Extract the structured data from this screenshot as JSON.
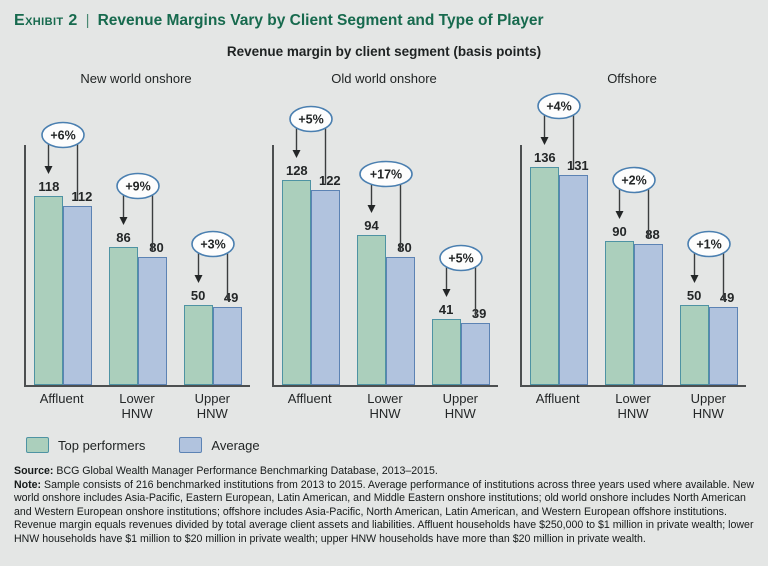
{
  "exhibit": {
    "label": "Exhibit 2",
    "separator": "|",
    "title": "Revenue Margins Vary by Client Segment and Type of Player"
  },
  "subtitle": "Revenue margin by client segment (basis points)",
  "chart_data": {
    "type": "bar",
    "title": "Revenue margin by client segment (basis points)",
    "unit": "basis points",
    "ylim": [
      0,
      150
    ],
    "grid": false,
    "legend_position": "bottom-left",
    "categories": [
      "Affluent",
      "Lower HNW",
      "Upper HNW"
    ],
    "series_names": [
      "Top performers",
      "Average"
    ],
    "panels": [
      {
        "title": "New world onshore",
        "groups": [
          {
            "category": "Affluent",
            "top_performers": 118,
            "average": 112,
            "delta": "+6%"
          },
          {
            "category": "Lower HNW",
            "top_performers": 86,
            "average": 80,
            "delta": "+9%"
          },
          {
            "category": "Upper HNW",
            "top_performers": 50,
            "average": 49,
            "delta": "+3%"
          }
        ]
      },
      {
        "title": "Old world onshore",
        "groups": [
          {
            "category": "Affluent",
            "top_performers": 128,
            "average": 122,
            "delta": "+5%"
          },
          {
            "category": "Lower HNW",
            "top_performers": 94,
            "average": 80,
            "delta": "+17%"
          },
          {
            "category": "Upper HNW",
            "top_performers": 41,
            "average": 39,
            "delta": "+5%"
          }
        ]
      },
      {
        "title": "Offshore",
        "groups": [
          {
            "category": "Affluent",
            "top_performers": 136,
            "average": 131,
            "delta": "+4%"
          },
          {
            "category": "Lower HNW",
            "top_performers": 90,
            "average": 88,
            "delta": "+2%"
          },
          {
            "category": "Upper HNW",
            "top_performers": 50,
            "average": 49,
            "delta": "+1%"
          }
        ]
      }
    ]
  },
  "legend": [
    {
      "label": "Top performers",
      "fill": "#abcfbc",
      "stroke": "#4e93a3"
    },
    {
      "label": "Average",
      "fill": "#b1c3de",
      "stroke": "#5c83b4"
    }
  ],
  "footnotes": {
    "source_label": "Source:",
    "source_text": " BCG Global Wealth Manager Performance Benchmarking Database, 2013–2015.",
    "note_label": "Note:",
    "note_text": " Sample consists of 216 benchmarked institutions from 2013 to 2015. Average performance of institutions across three years used where available. New world onshore includes Asia-Pacific, Eastern European, Latin American, and Middle Eastern onshore institutions; old world onshore includes North American and Western European onshore institutions; offshore includes Asia-Pacific, North American, Latin American, and Western European offshore institutions. Revenue margin equals revenues divided by total average client assets and liabilities. Affluent households have $250,000 to $1 million in private wealth; lower HNW households have $1 million to $20 million in private wealth; upper HNW households have more than $20 million in private wealth."
  },
  "colors": {
    "background": "#e4e6e5",
    "accent_green": "#176a4e",
    "bar_top_fill": "#abcfbc",
    "bar_top_stroke": "#4e93a3",
    "bar_avg_fill": "#b1c3de",
    "bar_avg_stroke": "#5c83b4",
    "badge_stroke": "#4a7fb0",
    "axis": "#4c4f50",
    "text": "#1f2323"
  }
}
